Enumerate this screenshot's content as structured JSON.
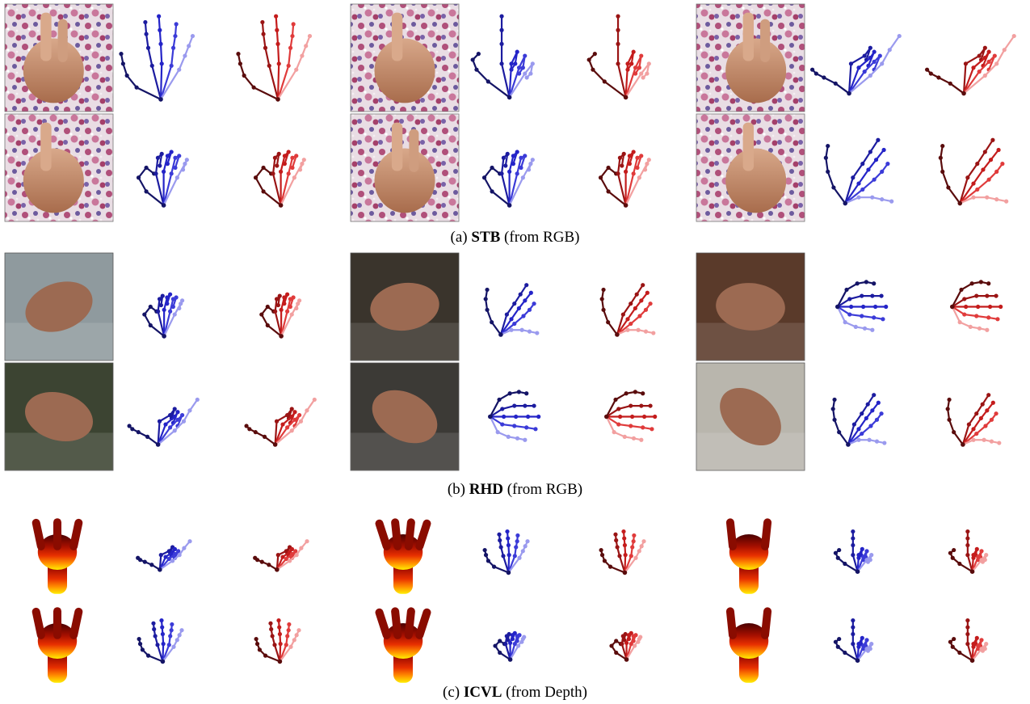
{
  "captions": {
    "a": {
      "prefix": "(a) ",
      "dataset": "STB",
      "suffix": " (from RGB)"
    },
    "b": {
      "prefix": "(b) ",
      "dataset": "RHD",
      "suffix": " (from RGB)"
    },
    "c": {
      "prefix": "(c) ",
      "dataset": "ICVL",
      "suffix": " (from Depth)"
    }
  },
  "colors": {
    "pred_blue": [
      "#141466",
      "#1c1ca0",
      "#2424c8",
      "#3b3bd8",
      "#9a9aee"
    ],
    "gt_red": [
      "#5a0c0c",
      "#9a1414",
      "#c41c1c",
      "#e03b3b",
      "#f2a0a0"
    ],
    "depth_hand": [
      "#5a0000",
      "#a01000",
      "#e03000",
      "#ff8000",
      "#ffe000"
    ]
  }
}
